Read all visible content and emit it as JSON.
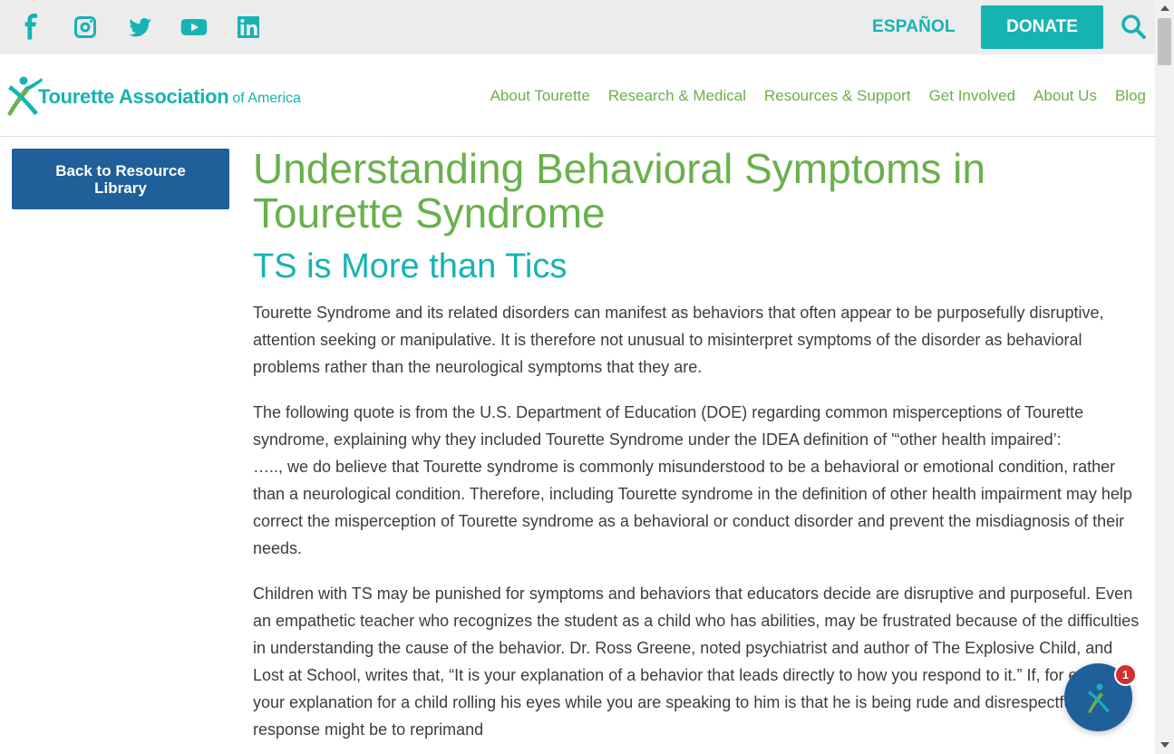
{
  "topbar": {
    "social": [
      {
        "icon": "facebook-icon"
      },
      {
        "icon": "instagram-icon"
      },
      {
        "icon": "twitter-icon"
      },
      {
        "icon": "youtube-icon"
      },
      {
        "icon": "linkedin-icon"
      }
    ],
    "language_link": "ESPAÑOL",
    "donate_label": "DONATE",
    "search_icon": "search-icon",
    "accent_color": "#16b3b3"
  },
  "header": {
    "logo_main": "Tourette Association",
    "logo_sub": "of America",
    "nav": [
      "About Tourette",
      "Research & Medical",
      "Resources & Support",
      "Get Involved",
      "About Us",
      "Blog"
    ],
    "nav_color": "#6ab04c"
  },
  "sidebar": {
    "back_button": "Back to Resource Library",
    "button_color": "#1f5f9a"
  },
  "article": {
    "title": "Understanding Behavioral Symptoms in Tourette Syndrome",
    "subtitle": "TS is More than Tics",
    "p1": "Tourette Syndrome and its related disorders can manifest as behaviors that often appear to be purposefully disruptive, attention seeking or manipulative. It is therefore not unusual to misinterpret symptoms of the disorder as behavioral problems rather than the neurological symptoms that they are.",
    "p2a": "The following quote is from the U.S. Department of Education (DOE) regarding common misperceptions of Tourette syndrome, explaining why they included Tourette Syndrome under the IDEA definition of '“other health impaired’:",
    "p2b": "….., we do believe that Tourette syndrome is commonly misunderstood to be a behavioral or emotional condition, rather than a neurological condition. Therefore, including Tourette syndrome in the definition of other health impairment may help correct the misperception of Tourette syndrome as a behavioral or conduct disorder and prevent the misdiagnosis of their needs.",
    "p3": "Children with TS may be punished for symptoms and behaviors that educators decide are disruptive and purposeful. Even an empathetic teacher who recognizes the student as a child who has abilities, may be frustrated because of the difficulties in understanding the cause of the behavior. Dr. Ross Greene, noted psychiatrist and author of The Explosive Child, and Lost at School, writes that, “It is your explanation of a behavior that leads directly to how you respond to it.” If, for example, your explanation for a child rolling his eyes while you are speaking to him is that he is being rude and disrespectful, your response might be to reprimand"
  },
  "chat": {
    "badge_count": "1",
    "icon": "chat-logo-icon"
  }
}
